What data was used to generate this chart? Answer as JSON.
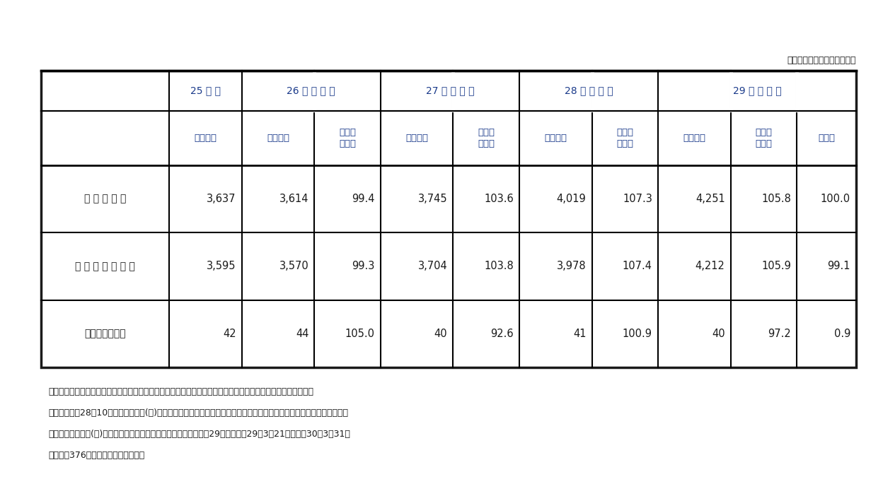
{
  "unit_label": "（単位：百万個（冊）、％）",
  "col0_header": "",
  "year25": "25 年 度",
  "year26": "26 　 年 　 度",
  "year27": "27 　 年 　 度",
  "year28": "28 　 年 　 度",
  "year29": "29 　 年 　 度",
  "hdr_toriatsuki": "取扱個数",
  "hdr_zentainen": "対前年\n度　比",
  "hdr_kosei": "構成比",
  "row_labels": [
    "宅 配 便 合 計",
    "ト 　 ラ 　 ッ 　 ク",
    "航空等利用運送"
  ],
  "data": [
    [
      "3,637",
      "3,614",
      "99.4",
      "3,745",
      "103.6",
      "4,019",
      "107.3",
      "4,251",
      "105.8",
      "100.0"
    ],
    [
      "3,595",
      "3,570",
      "99.3",
      "3,704",
      "103.8",
      "3,978",
      "107.4",
      "4,212",
      "105.9",
      "99.1"
    ],
    [
      "42",
      "44",
      "105.0",
      "40",
      "92.6",
      "41",
      "100.9",
      "40",
      "97.2",
      "0.9"
    ]
  ],
  "notes": [
    "（注１）日本郵便の株については、航空等利用運送事業に係る宅配便も含めトラック運送として集計している。",
    "（注２）平成28年10月より日本郵便(株)が取扱う「ゆうパケット」を宅配便取扱個数に含めて集計することとしている。",
    "（注３）佐川急便(株)において、決算期の変更があったため、平成29年度は平成29年3月21日～平成30年3月31日",
    "　　　（376日分）で集計している。"
  ],
  "bg_color": "#ffffff",
  "text_color": "#1a1a1a",
  "hdr_color": "#1a3a8a",
  "border_color": "#1a1a1a",
  "data_color": "#1a1a1a"
}
